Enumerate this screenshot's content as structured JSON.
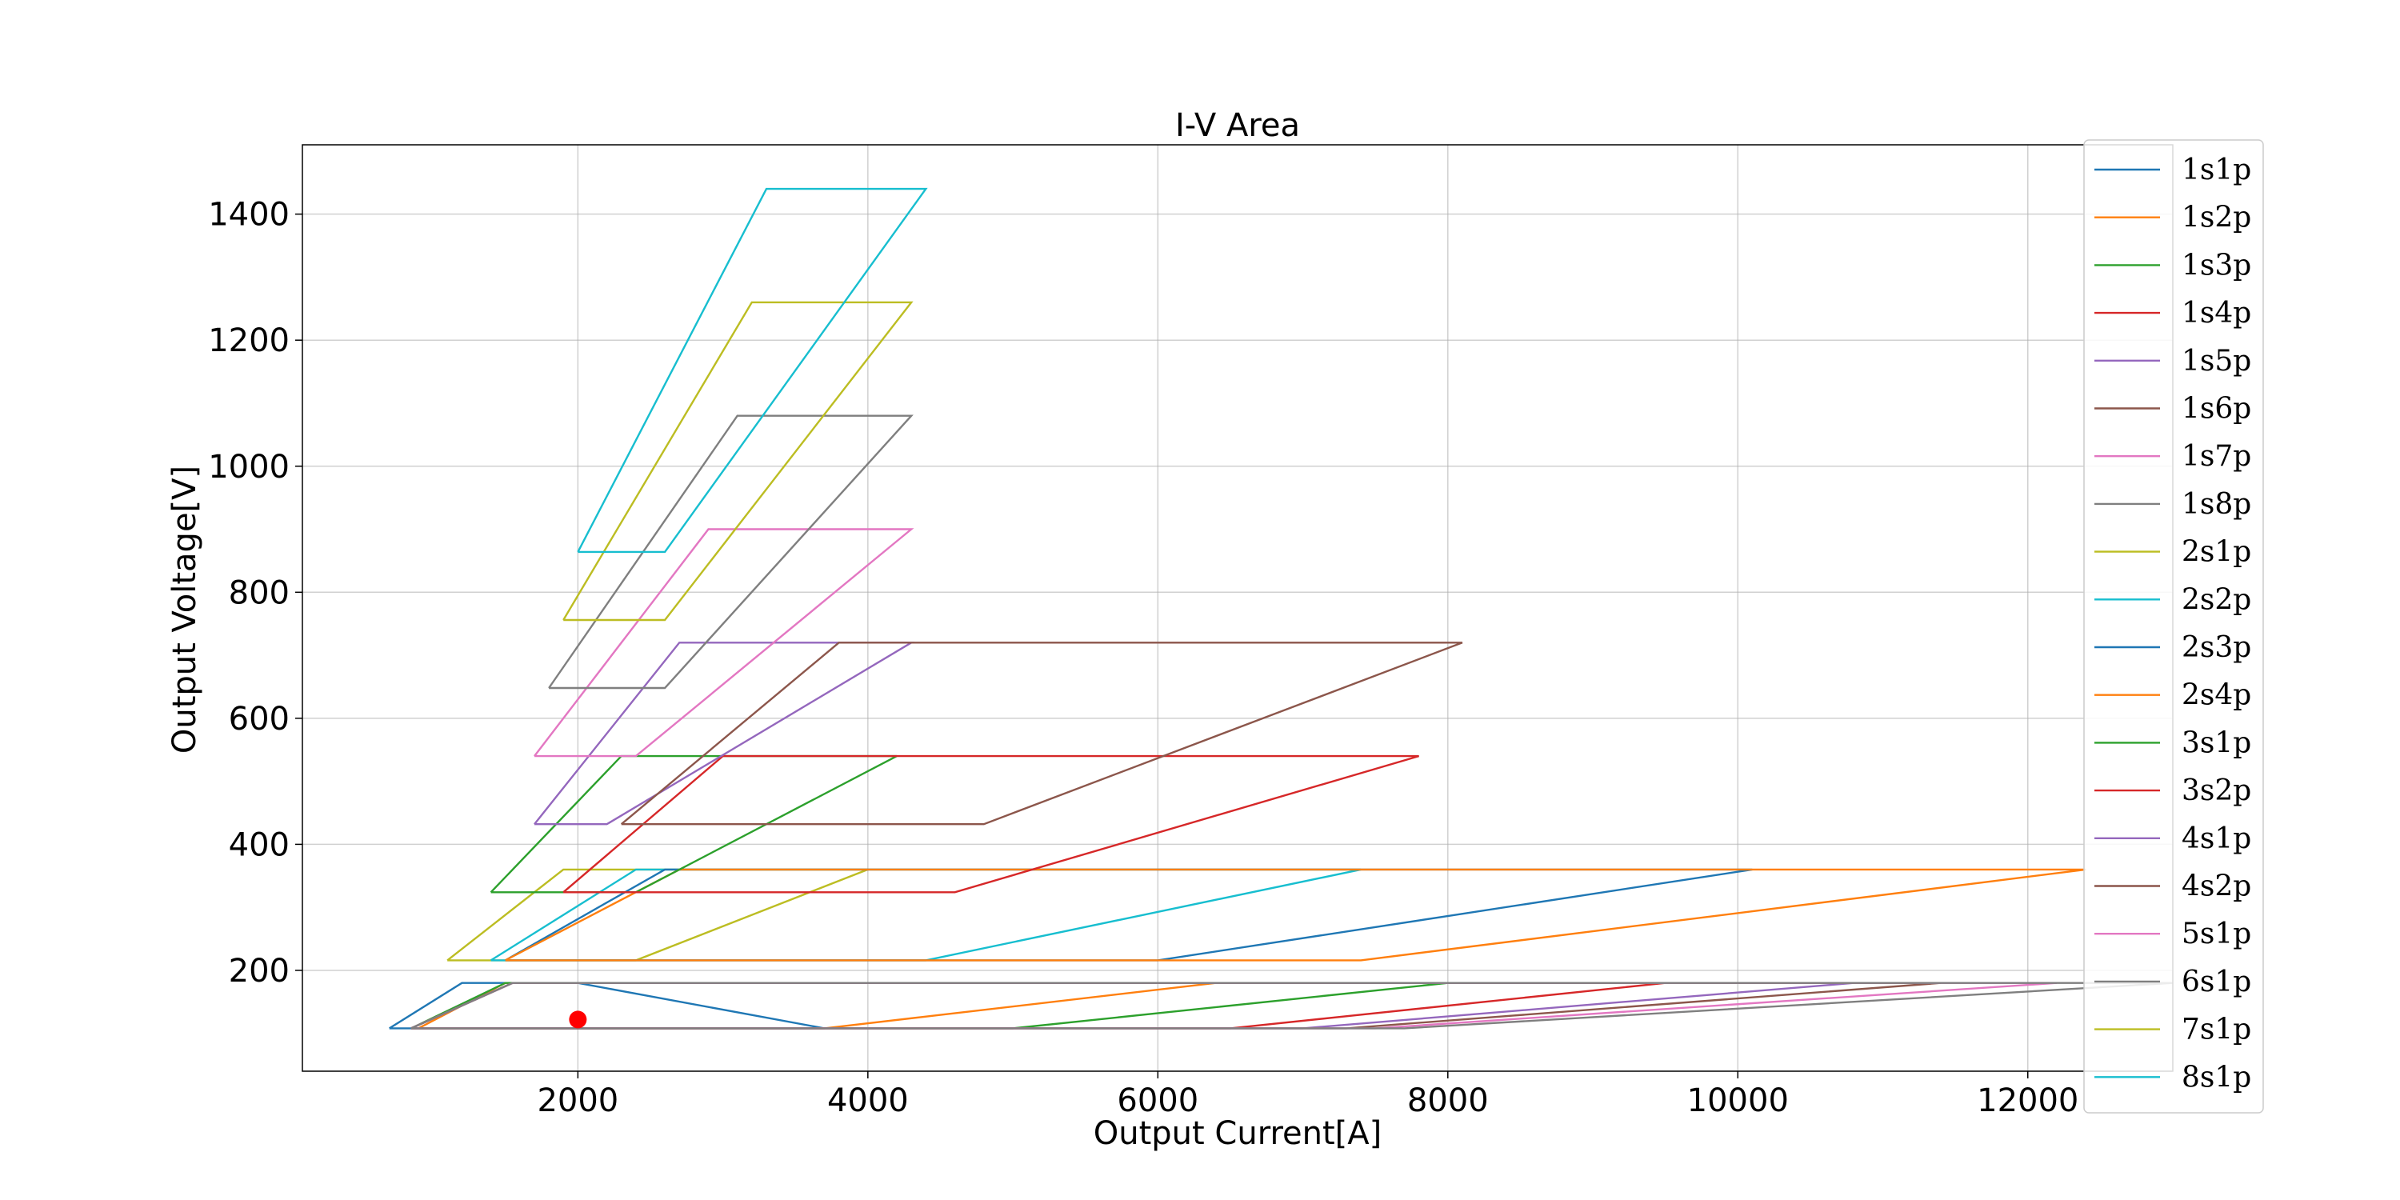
{
  "chart_data": {
    "type": "line",
    "title": "I-V Area",
    "xlabel": "Output Current[A]",
    "ylabel": "Output Voltage[V]",
    "xlim": [
      100,
      13000
    ],
    "ylim": [
      40,
      1510
    ],
    "xticks": [
      2000,
      4000,
      6000,
      8000,
      10000,
      12000
    ],
    "yticks": [
      200,
      400,
      600,
      800,
      1000,
      1200,
      1400
    ],
    "grid": true,
    "legend_position": "right",
    "series": [
      {
        "name": "1s1p",
        "color": "#1f77b4",
        "points": [
          [
            700,
            108
          ],
          [
            3700,
            108
          ],
          [
            2000,
            180
          ],
          [
            1200,
            180
          ],
          [
            700,
            108
          ]
        ]
      },
      {
        "name": "1s2p",
        "color": "#ff7f0e",
        "points": [
          [
            900,
            108
          ],
          [
            3700,
            108
          ],
          [
            6400,
            180
          ],
          [
            1500,
            180
          ],
          [
            900,
            108
          ]
        ]
      },
      {
        "name": "1s3p",
        "color": "#2ca02c",
        "points": [
          [
            850,
            108
          ],
          [
            5000,
            108
          ],
          [
            8000,
            180
          ],
          [
            1500,
            180
          ],
          [
            850,
            108
          ]
        ]
      },
      {
        "name": "1s4p",
        "color": "#d62728",
        "points": [
          [
            850,
            108
          ],
          [
            6500,
            108
          ],
          [
            9500,
            180
          ],
          [
            1550,
            180
          ],
          [
            850,
            108
          ]
        ]
      },
      {
        "name": "1s5p",
        "color": "#9467bd",
        "points": [
          [
            850,
            108
          ],
          [
            7000,
            108
          ],
          [
            10800,
            180
          ],
          [
            1550,
            180
          ],
          [
            850,
            108
          ]
        ]
      },
      {
        "name": "1s6p",
        "color": "#8c564b",
        "points": [
          [
            850,
            108
          ],
          [
            7300,
            108
          ],
          [
            11400,
            180
          ],
          [
            1550,
            180
          ],
          [
            850,
            108
          ]
        ]
      },
      {
        "name": "1s7p",
        "color": "#e377c2",
        "points": [
          [
            850,
            108
          ],
          [
            7500,
            108
          ],
          [
            12200,
            180
          ],
          [
            1550,
            180
          ],
          [
            850,
            108
          ]
        ]
      },
      {
        "name": "1s8p",
        "color": "#7f7f7f",
        "points": [
          [
            850,
            108
          ],
          [
            7700,
            108
          ],
          [
            13000,
            180
          ],
          [
            1550,
            180
          ],
          [
            850,
            108
          ]
        ]
      },
      {
        "name": "2s1p",
        "color": "#bcbd22",
        "points": [
          [
            1100,
            216
          ],
          [
            2400,
            216
          ],
          [
            4000,
            360
          ],
          [
            1900,
            360
          ],
          [
            1100,
            216
          ]
        ]
      },
      {
        "name": "2s2p",
        "color": "#17becf",
        "points": [
          [
            1400,
            216
          ],
          [
            4400,
            216
          ],
          [
            7400,
            360
          ],
          [
            2400,
            360
          ],
          [
            1400,
            216
          ]
        ]
      },
      {
        "name": "2s3p",
        "color": "#1f77b4",
        "points": [
          [
            1500,
            216
          ],
          [
            6000,
            216
          ],
          [
            10100,
            360
          ],
          [
            2600,
            360
          ],
          [
            1500,
            216
          ]
        ]
      },
      {
        "name": "2s4p",
        "color": "#ff7f0e",
        "points": [
          [
            1500,
            216
          ],
          [
            7400,
            216
          ],
          [
            12400,
            360
          ],
          [
            2700,
            360
          ],
          [
            1500,
            216
          ]
        ]
      },
      {
        "name": "3s1p",
        "color": "#2ca02c",
        "points": [
          [
            1400,
            324
          ],
          [
            2400,
            324
          ],
          [
            4200,
            540
          ],
          [
            2300,
            540
          ],
          [
            1400,
            324
          ]
        ]
      },
      {
        "name": "3s2p",
        "color": "#d62728",
        "points": [
          [
            1900,
            324
          ],
          [
            4600,
            324
          ],
          [
            7800,
            540
          ],
          [
            3000,
            540
          ],
          [
            1900,
            324
          ]
        ]
      },
      {
        "name": "4s1p",
        "color": "#9467bd",
        "points": [
          [
            1700,
            432
          ],
          [
            2200,
            432
          ],
          [
            4300,
            720
          ],
          [
            2700,
            720
          ],
          [
            1700,
            432
          ]
        ]
      },
      {
        "name": "4s2p",
        "color": "#8c564b",
        "points": [
          [
            2300,
            432
          ],
          [
            4800,
            432
          ],
          [
            8100,
            720
          ],
          [
            3800,
            720
          ],
          [
            2300,
            432
          ]
        ]
      },
      {
        "name": "5s1p",
        "color": "#e377c2",
        "points": [
          [
            1700,
            540
          ],
          [
            2400,
            540
          ],
          [
            4300,
            900
          ],
          [
            2900,
            900
          ],
          [
            1700,
            540
          ]
        ]
      },
      {
        "name": "6s1p",
        "color": "#7f7f7f",
        "points": [
          [
            1800,
            648
          ],
          [
            2600,
            648
          ],
          [
            4300,
            1080
          ],
          [
            3100,
            1080
          ],
          [
            1800,
            648
          ]
        ]
      },
      {
        "name": "7s1p",
        "color": "#bcbd22",
        "points": [
          [
            1900,
            756
          ],
          [
            2600,
            756
          ],
          [
            4300,
            1260
          ],
          [
            3200,
            1260
          ],
          [
            1900,
            756
          ]
        ]
      },
      {
        "name": "8s1p",
        "color": "#17becf",
        "points": [
          [
            2000,
            864
          ],
          [
            2600,
            864
          ],
          [
            4400,
            1440
          ],
          [
            3300,
            1440
          ],
          [
            2000,
            864
          ]
        ]
      }
    ],
    "markers": [
      {
        "x": 2000,
        "y": 122,
        "color": "#ff0000"
      }
    ]
  }
}
